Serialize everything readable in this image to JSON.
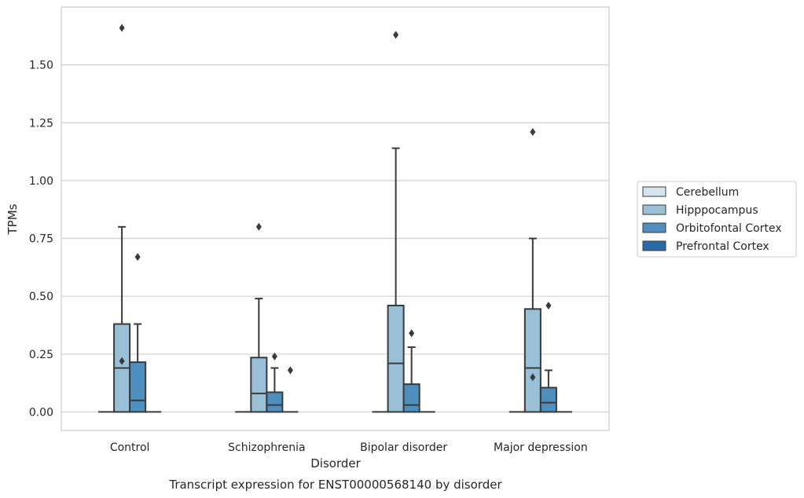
{
  "chart_data": {
    "type": "box",
    "caption": "Transcript expression for ENST00000568140 by disorder",
    "xlabel": "Disorder",
    "ylabel": "TPMs",
    "ylim": [
      -0.08,
      1.75
    ],
    "yticks": [
      0.0,
      0.25,
      0.5,
      0.75,
      1.0,
      1.25,
      1.5
    ],
    "ytick_labels": [
      "0.00",
      "0.25",
      "0.50",
      "0.75",
      "1.00",
      "1.25",
      "1.50"
    ],
    "grid": "horizontal",
    "legend_position": "right",
    "categories": [
      "Control",
      "Schizophrenia",
      "Bipolar disorder",
      "Major depression"
    ],
    "series": [
      {
        "name": "Cerebellum",
        "color": "#d6e4f0",
        "boxes": [
          {
            "q1": 0,
            "median": 0,
            "q3": 0,
            "whisker_low": 0,
            "whisker_high": 0,
            "outliers": []
          },
          {
            "q1": 0,
            "median": 0,
            "q3": 0,
            "whisker_low": 0,
            "whisker_high": 0,
            "outliers": []
          },
          {
            "q1": 0,
            "median": 0,
            "q3": 0,
            "whisker_low": 0,
            "whisker_high": 0,
            "outliers": []
          },
          {
            "q1": 0,
            "median": 0,
            "q3": 0,
            "whisker_low": 0,
            "whisker_high": 0,
            "outliers": []
          }
        ]
      },
      {
        "name": "Hipppocampus",
        "color": "#9ac0d8",
        "boxes": [
          {
            "q1": 0,
            "median": 0.19,
            "q3": 0.38,
            "whisker_low": 0,
            "whisker_high": 0.8,
            "outliers": [
              0.22,
              1.66
            ]
          },
          {
            "q1": 0,
            "median": 0.08,
            "q3": 0.235,
            "whisker_low": 0,
            "whisker_high": 0.49,
            "outliers": [
              0.8
            ]
          },
          {
            "q1": 0,
            "median": 0.21,
            "q3": 0.46,
            "whisker_low": 0,
            "whisker_high": 1.14,
            "outliers": [
              1.63
            ]
          },
          {
            "q1": 0,
            "median": 0.19,
            "q3": 0.445,
            "whisker_low": 0,
            "whisker_high": 0.75,
            "outliers": [
              0.15,
              1.21
            ]
          }
        ]
      },
      {
        "name": "Orbitofontal Cortex",
        "color": "#4f8fbf",
        "boxes": [
          {
            "q1": 0,
            "median": 0.05,
            "q3": 0.215,
            "whisker_low": 0,
            "whisker_high": 0.38,
            "outliers": [
              0.67
            ]
          },
          {
            "q1": 0,
            "median": 0.03,
            "q3": 0.085,
            "whisker_low": 0,
            "whisker_high": 0.19,
            "outliers": [
              0.24
            ]
          },
          {
            "q1": 0,
            "median": 0.03,
            "q3": 0.12,
            "whisker_low": 0,
            "whisker_high": 0.28,
            "outliers": [
              0.34
            ]
          },
          {
            "q1": 0,
            "median": 0.04,
            "q3": 0.105,
            "whisker_low": 0,
            "whisker_high": 0.18,
            "outliers": [
              0.46
            ]
          }
        ]
      },
      {
        "name": "Prefrontal Cortex",
        "color": "#2b6aa8",
        "boxes": [
          {
            "q1": 0,
            "median": 0,
            "q3": 0,
            "whisker_low": 0,
            "whisker_high": 0,
            "outliers": []
          },
          {
            "q1": 0,
            "median": 0,
            "q3": 0,
            "whisker_low": 0,
            "whisker_high": 0,
            "outliers": [
              0.18
            ]
          },
          {
            "q1": 0,
            "median": 0,
            "q3": 0,
            "whisker_low": 0,
            "whisker_high": 0,
            "outliers": []
          },
          {
            "q1": 0,
            "median": 0,
            "q3": 0,
            "whisker_low": 0,
            "whisker_high": 0,
            "outliers": []
          }
        ]
      }
    ],
    "colors": {
      "grid": "#d0d0d0",
      "spine": "#cccccc",
      "box_edge": "#3a3a3a",
      "outlier": "#3a3a3a"
    }
  }
}
